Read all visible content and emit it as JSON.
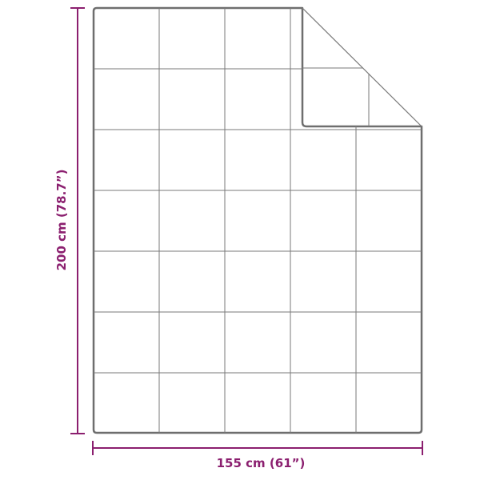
{
  "colors": {
    "dimension": "#8b1f6f",
    "outline": "#6e6e6e",
    "grid": "#7a7a7a"
  },
  "blanket": {
    "columns": 5,
    "rows": 7,
    "folded_corner": "top-right"
  },
  "dimensions": {
    "width_label": "155 cm (61”)",
    "height_label": "200 cm (78.7”)"
  }
}
